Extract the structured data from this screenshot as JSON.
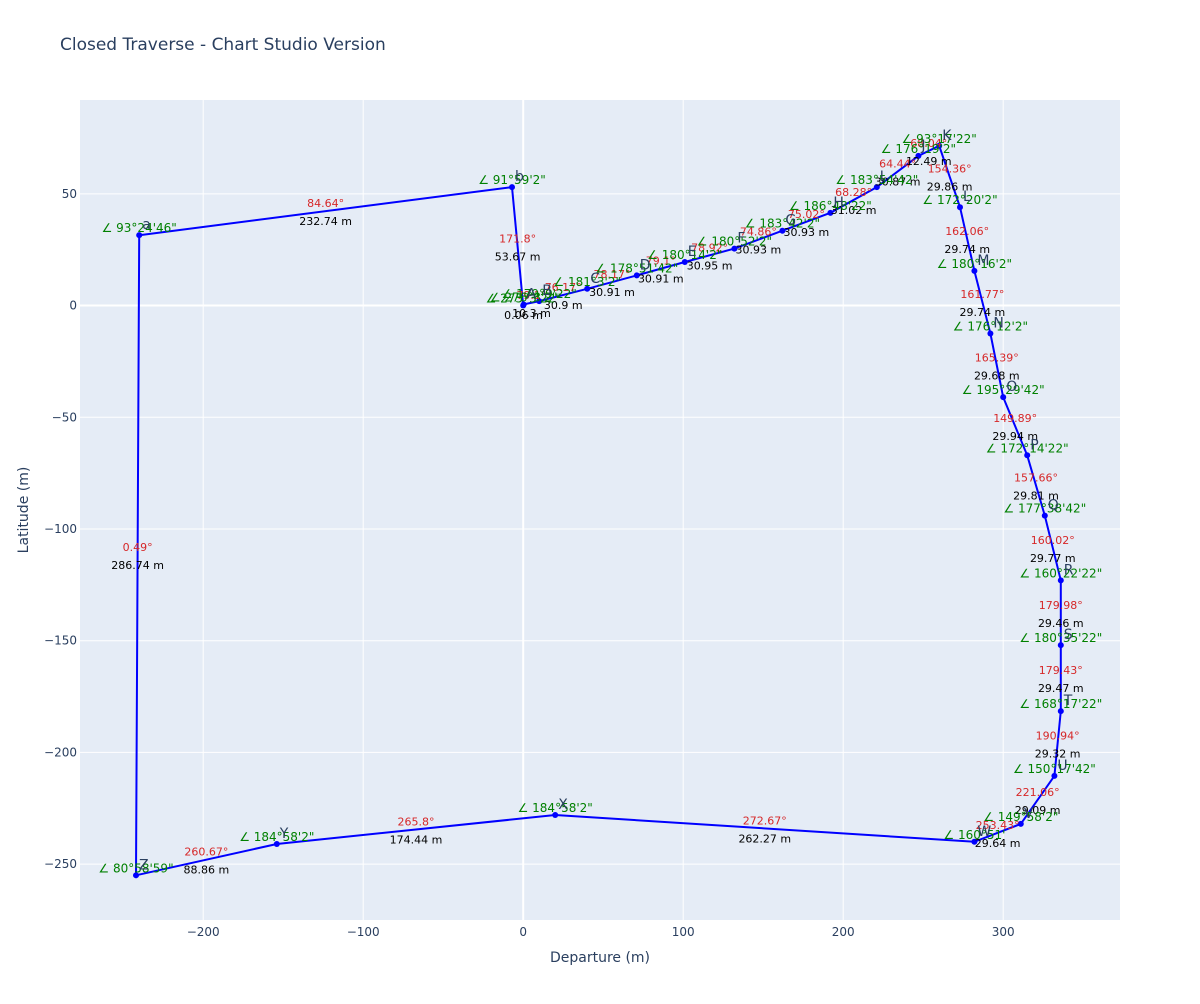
{
  "chart_data": {
    "type": "line",
    "title": "Closed Traverse - Chart Studio Version",
    "xlabel": "Departure (m)",
    "ylabel": "Latitude (m)",
    "xlim": [
      -277,
      373
    ],
    "ylim": [
      -275,
      92
    ],
    "xticks": [
      -200,
      -100,
      0,
      100,
      200,
      300
    ],
    "yticks": [
      -250,
      -200,
      -150,
      -100,
      -50,
      0,
      50
    ],
    "xtick_labels": [
      "−200",
      "−100",
      "0",
      "100",
      "200",
      "300"
    ],
    "ytick_labels": [
      "−250",
      "−200",
      "−150",
      "−100",
      "−50",
      "0",
      "50"
    ],
    "grid": true,
    "legend": "none",
    "line_color": "#0000ff",
    "plot_bg": "#e5ecf6",
    "points": [
      {
        "name": "",
        "x": 0,
        "y": 0,
        "angle": "∠ 275°3'22\""
      },
      {
        "name": "A",
        "x": 0.3,
        "y": 0.5,
        "angle": "∠ 276°3'2\""
      },
      {
        "name": "B",
        "x": 10,
        "y": 2,
        "angle": "∠ 179°9'22\""
      },
      {
        "name": "C",
        "x": 40,
        "y": 7.5,
        "angle": "∠ 181°3'2\""
      },
      {
        "name": "D",
        "x": 71,
        "y": 13.5,
        "angle": "∠ 178°51'42\""
      },
      {
        "name": "E",
        "x": 101,
        "y": 19.5,
        "angle": "∠ 180°14'2\""
      },
      {
        "name": "F",
        "x": 132,
        "y": 25.5,
        "angle": "∠ 180°52'2\""
      },
      {
        "name": "G",
        "x": 162,
        "y": 33.5,
        "angle": "∠ 183°42'2\""
      },
      {
        "name": "H",
        "x": 192,
        "y": 41.5,
        "angle": "∠ 186°48'22\""
      },
      {
        "name": "I",
        "x": 221,
        "y": 53,
        "angle": "∠ 183°54'42\""
      },
      {
        "name": "J",
        "x": 247,
        "y": 67,
        "angle": "∠ 176°19'2\""
      },
      {
        "name": "K",
        "x": 260,
        "y": 71.5,
        "angle": "∠ 93°17'22\""
      },
      {
        "name": "L",
        "x": 273,
        "y": 44,
        "angle": "∠ 172°20'2\""
      },
      {
        "name": "M",
        "x": 282,
        "y": 15.5,
        "angle": "∠ 180°16'2\""
      },
      {
        "name": "N",
        "x": 292,
        "y": -12.5,
        "angle": "∠ 176°12'2\""
      },
      {
        "name": "O",
        "x": 300,
        "y": -41,
        "angle": "∠ 195°29'42\""
      },
      {
        "name": "P",
        "x": 315,
        "y": -67,
        "angle": "∠ 172°14'22\""
      },
      {
        "name": "Q",
        "x": 326,
        "y": -94,
        "angle": "∠ 177°38'42\""
      },
      {
        "name": "R",
        "x": 336,
        "y": -123,
        "angle": "∠ 160°22'22\""
      },
      {
        "name": "S",
        "x": 336,
        "y": -152,
        "angle": "∠ 180°35'22\""
      },
      {
        "name": "T",
        "x": 336,
        "y": -181.5,
        "angle": "∠ 168°17'22\""
      },
      {
        "name": "U",
        "x": 332,
        "y": -210.5,
        "angle": "∠ 150°17'42\""
      },
      {
        "name": "V",
        "x": 311,
        "y": -232,
        "angle": "∠ 149°58'2\""
      },
      {
        "name": "W",
        "x": 282,
        "y": -240,
        "angle": "∠ 160°51'"
      },
      {
        "name": "X",
        "x": 20,
        "y": -228,
        "angle": "∠ 184°58'2\""
      },
      {
        "name": "Y",
        "x": -154,
        "y": -241,
        "angle": "∠ 184°58'2\""
      },
      {
        "name": "Z",
        "x": -242,
        "y": -255,
        "angle": "∠ 80°58'59\""
      },
      {
        "name": "a",
        "x": -240,
        "y": 31.5,
        "angle": "∠ 93°24'46\""
      },
      {
        "name": "b",
        "x": -7,
        "y": 53,
        "angle": "∠ 91°59'2\""
      }
    ],
    "legs": [
      {
        "bearing": "",
        "distance": "0.06 m"
      },
      {
        "bearing": "79.1°",
        "distance": "10.3 m"
      },
      {
        "bearing": "76.17°",
        "distance": "30.9 m"
      },
      {
        "bearing": "78.17°",
        "distance": "30.91 m"
      },
      {
        "bearing": "79.1°",
        "distance": "30.91 m"
      },
      {
        "bearing": "78.92°",
        "distance": "30.95 m"
      },
      {
        "bearing": "74.86°",
        "distance": "30.93 m"
      },
      {
        "bearing": "75.02°",
        "distance": "30.93 m"
      },
      {
        "bearing": "68.28°",
        "distance": "31.02 m"
      },
      {
        "bearing": "64.44°",
        "distance": "30.87 m"
      },
      {
        "bearing": "68.04°",
        "distance": "12.49 m"
      },
      {
        "bearing": "154.36°",
        "distance": "29.86 m"
      },
      {
        "bearing": "162.06°",
        "distance": "29.74 m"
      },
      {
        "bearing": "161.77°",
        "distance": "29.74 m"
      },
      {
        "bearing": "165.39°",
        "distance": "29.68 m"
      },
      {
        "bearing": "149.89°",
        "distance": "29.94 m"
      },
      {
        "bearing": "157.66°",
        "distance": "29.81 m"
      },
      {
        "bearing": "160.02°",
        "distance": "29.77 m"
      },
      {
        "bearing": "179.98°",
        "distance": "29.46 m"
      },
      {
        "bearing": "179.43°",
        "distance": "29.47 m"
      },
      {
        "bearing": "190.94°",
        "distance": "29.32 m"
      },
      {
        "bearing": "221.06°",
        "distance": "29.09 m"
      },
      {
        "bearing": "253.43°",
        "distance": "29.64 m"
      },
      {
        "bearing": "272.67°",
        "distance": "262.27 m"
      },
      {
        "bearing": "265.8°",
        "distance": "174.44 m"
      },
      {
        "bearing": "260.67°",
        "distance": "88.86 m"
      },
      {
        "bearing": "0.49°",
        "distance": "286.74 m"
      },
      {
        "bearing": "84.64°",
        "distance": "232.74 m"
      },
      {
        "bearing": "171.8°",
        "distance": "53.67 m"
      }
    ]
  }
}
